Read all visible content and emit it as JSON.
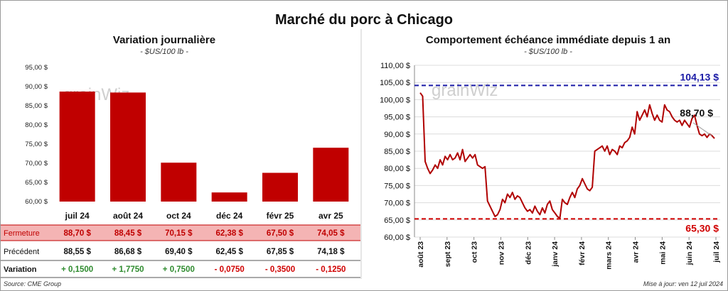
{
  "title": "Marché du porc à Chicago",
  "left": {
    "subtitle": "Variation journalière",
    "units": "- $US/100 lb -",
    "chart_data": {
      "type": "bar",
      "categories": [
        "juil 24",
        "août 24",
        "oct 24",
        "déc 24",
        "févr 25",
        "avr 25"
      ],
      "values": [
        88.7,
        88.45,
        70.15,
        62.38,
        67.5,
        74.05
      ],
      "ylim": [
        60,
        95
      ],
      "yticks": [
        "60,00 $",
        "65,00 $",
        "70,00 $",
        "75,00 $",
        "80,00 $",
        "85,00 $",
        "90,00 $",
        "95,00 $"
      ],
      "bar_color": "#c00000"
    },
    "table": {
      "rows": [
        {
          "label": "Fermeture",
          "values": [
            "88,70  $",
            "88,45  $",
            "70,15  $",
            "62,38  $",
            "67,50  $",
            "74,05  $"
          ],
          "bg": "#f4b4b4",
          "label_color": "#c00000"
        },
        {
          "label": "Précédent",
          "values": [
            "88,55  $",
            "86,68  $",
            "69,40  $",
            "62,45  $",
            "67,85  $",
            "74,18  $"
          ],
          "bg": "#ffffff",
          "label_color": "#111111"
        },
        {
          "label": "Variation",
          "values": [
            "+ 0,1500",
            "+ 1,7750",
            "+ 0,7500",
            "- 0,0750",
            "- 0,3500",
            "- 0,1250"
          ],
          "bg": "#ffffff",
          "label_color": "#111111",
          "colors": [
            "#2e8b2e",
            "#2e8b2e",
            "#2e8b2e",
            "#d00000",
            "#d00000",
            "#d00000"
          ]
        }
      ]
    },
    "source": "Source: CME Group"
  },
  "right": {
    "subtitle": "Comportement  échéance immédiate depuis 1 an",
    "units": "- $US/100 lb -",
    "chart_data": {
      "type": "line",
      "ylim": [
        60,
        110
      ],
      "yticks": [
        "60,00 $",
        "65,00 $",
        "70,00 $",
        "75,00 $",
        "80,00 $",
        "85,00 $",
        "90,00 $",
        "95,00 $",
        "100,00 $",
        "105,00 $",
        "110,00 $"
      ],
      "xticks": [
        "août 23",
        "sept 23",
        "oct 23",
        "nov 23",
        "déc 23",
        "janv 24",
        "févr 24",
        "mars 24",
        "avr 24",
        "mai 24",
        "juin 24",
        "juil 24"
      ],
      "series_values": [
        102.0,
        101.0,
        82.0,
        80.0,
        78.5,
        79.5,
        81.0,
        80.0,
        82.5,
        81.0,
        83.5,
        82.5,
        84.0,
        82.5,
        83.0,
        84.5,
        82.5,
        85.5,
        82.0,
        83.0,
        84.0,
        83.0,
        84.0,
        81.0,
        80.5,
        80.0,
        80.5,
        70.5,
        69.0,
        67.5,
        66.0,
        66.5,
        68.0,
        71.0,
        70.0,
        72.5,
        71.5,
        73.0,
        71.0,
        72.0,
        71.5,
        70.0,
        68.5,
        67.5,
        68.0,
        67.0,
        69.0,
        67.5,
        66.5,
        68.5,
        67.0,
        69.5,
        70.5,
        68.0,
        67.0,
        66.0,
        65.5,
        71.0,
        70.0,
        69.5,
        71.5,
        73.0,
        71.5,
        74.0,
        75.0,
        77.0,
        75.5,
        74.0,
        73.5,
        74.5,
        85.0,
        85.5,
        86.0,
        86.5,
        85.0,
        86.5,
        84.0,
        85.5,
        85.0,
        84.0,
        86.5,
        86.0,
        87.5,
        88.0,
        89.0,
        92.0,
        90.0,
        96.5,
        94.0,
        95.5,
        97.0,
        95.0,
        98.5,
        96.0,
        94.0,
        95.5,
        94.0,
        93.5,
        98.5,
        97.0,
        96.5,
        95.0,
        94.0,
        93.5,
        94.0,
        92.5,
        94.0,
        93.0,
        92.0,
        94.5,
        95.5,
        92.5,
        90.0,
        89.5,
        90.0,
        89.0,
        90.0,
        89.5,
        88.7
      ],
      "high": {
        "value": 104.13,
        "label": "104,13 $",
        "color": "#1a1aa6"
      },
      "low": {
        "value": 65.3,
        "label": "65,30 $",
        "color": "#d00000"
      },
      "last_label": "88,70 $",
      "line_color": "#b00000"
    },
    "updated": "Mise à jour: ven 12 juil 2024"
  },
  "watermark": "grainWiz"
}
